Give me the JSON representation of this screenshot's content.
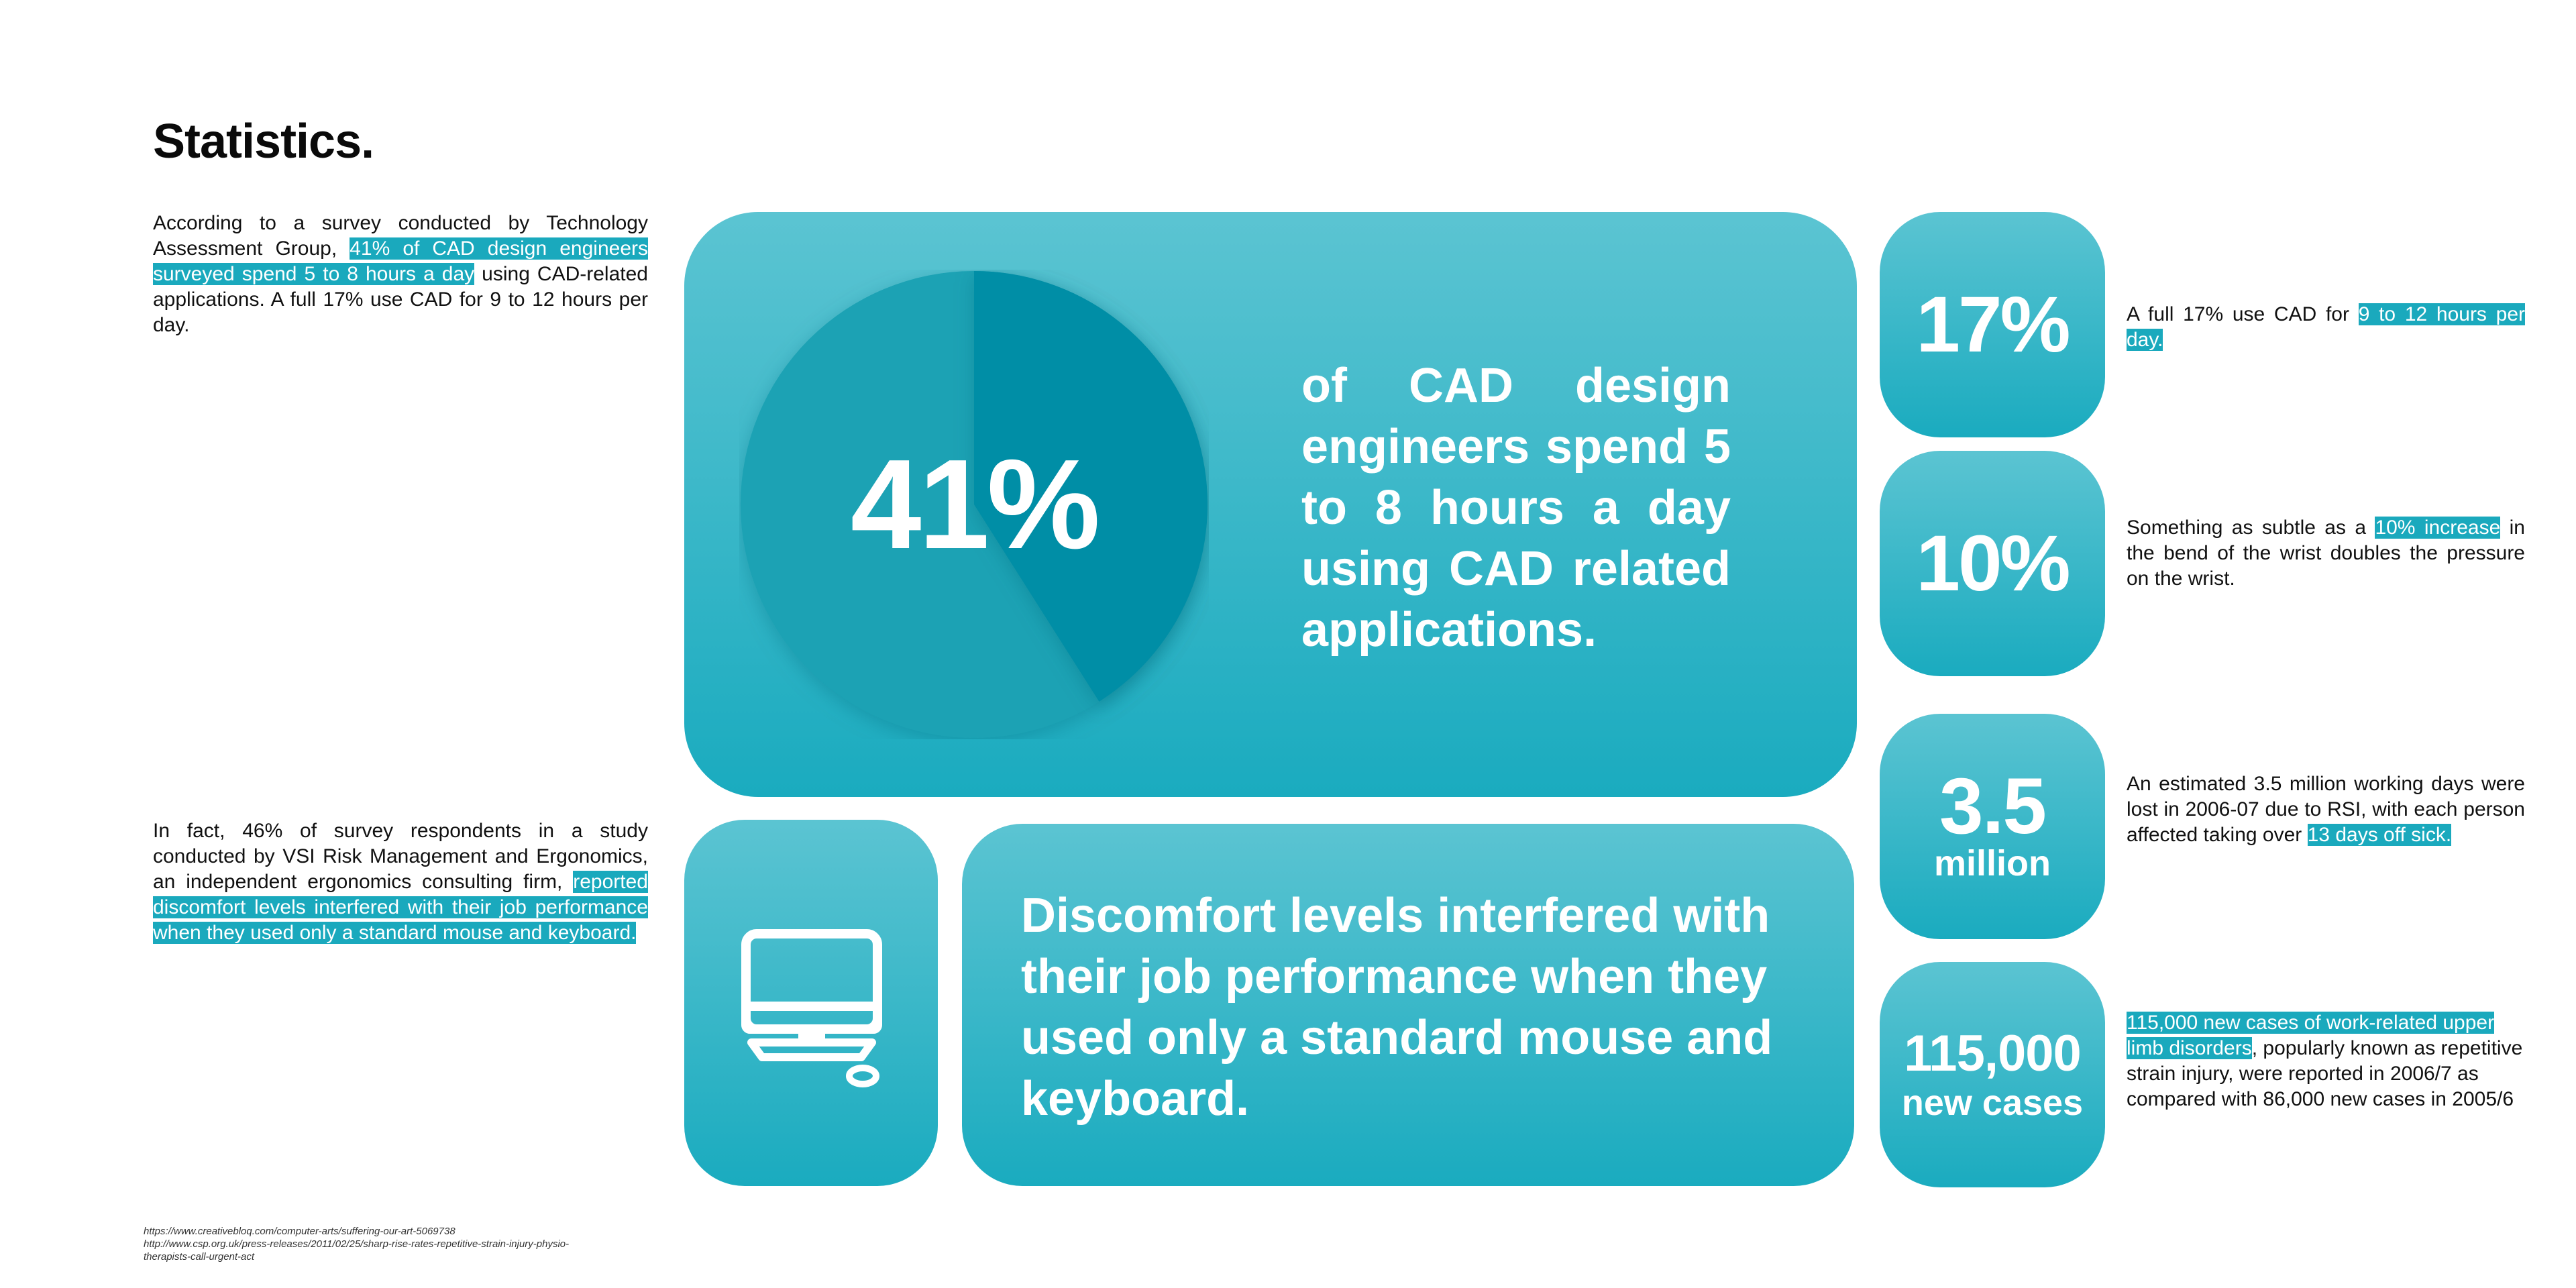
{
  "title": "Statistics.",
  "intro": {
    "before": "According to a survey conducted by Technology Assessment Group, ",
    "highlight": "41% of CAD design engineers surveyed spend 5 to 8 hours a day",
    "after": " using CAD-related applications. A full 17% use CAD for 9 to 12 hours per day."
  },
  "second_para": {
    "before": "In fact, 46% of survey respondents in a study conducted by VSI Risk Management and Ergonomics, an independent ergonomics consulting firm, ",
    "highlight": "reported discomfort levels interfered with their job performance when they used only a standard mouse and keyboard."
  },
  "main_stat": {
    "value": "41%",
    "pie_fraction": 0.41,
    "statement": "of CAD design engineers spend 5 to 8 hours a day using CAD related applications."
  },
  "discomfort": {
    "icon": "computer-monitor-icon",
    "statement": "Discomfort levels interfered with their job performance when they used only a standard mouse and keyboard."
  },
  "stats": [
    {
      "value": "17%",
      "sub": "",
      "text_before": "A full 17% use CAD for ",
      "text_highlight": "9 to 12 hours per day.",
      "text_after": ""
    },
    {
      "value": "10%",
      "sub": "",
      "text_before": "Something as subtle as a ",
      "text_highlight": "10% increase",
      "text_after": " in the bend of the wrist doubles the pressure on the wrist."
    },
    {
      "value": "3.5",
      "sub": "million",
      "text_before": "An estimated 3.5 million working days were lost in 2006-07 due to RSI, with each person affected taking over ",
      "text_highlight": "13 days off sick.",
      "text_after": ""
    },
    {
      "value": "115,000",
      "sub": "new cases",
      "text_before": "",
      "text_highlight": "115,000 new cases of work-related upper limb disorders",
      "text_after": ", popularly known as repetitive strain injury, were reported in 2006/7 as compared with 86,000 new cases in 2005/6"
    }
  ],
  "sources": [
    "https://www.creativebloq.com/computer-arts/suffering-our-art-5069738",
    "http://www.csp.org.uk/press-releases/2011/02/25/sharp-rise-rates-repetitive-strain-injury-physio-",
    "therapists-call-urgent-act"
  ],
  "colors": {
    "accent": "#1aa9bd",
    "card_top": "#5bc4d2",
    "card_bottom": "#1aabbf",
    "pie_dark": "#058ea6",
    "pie_light": "#1aa2b4"
  }
}
